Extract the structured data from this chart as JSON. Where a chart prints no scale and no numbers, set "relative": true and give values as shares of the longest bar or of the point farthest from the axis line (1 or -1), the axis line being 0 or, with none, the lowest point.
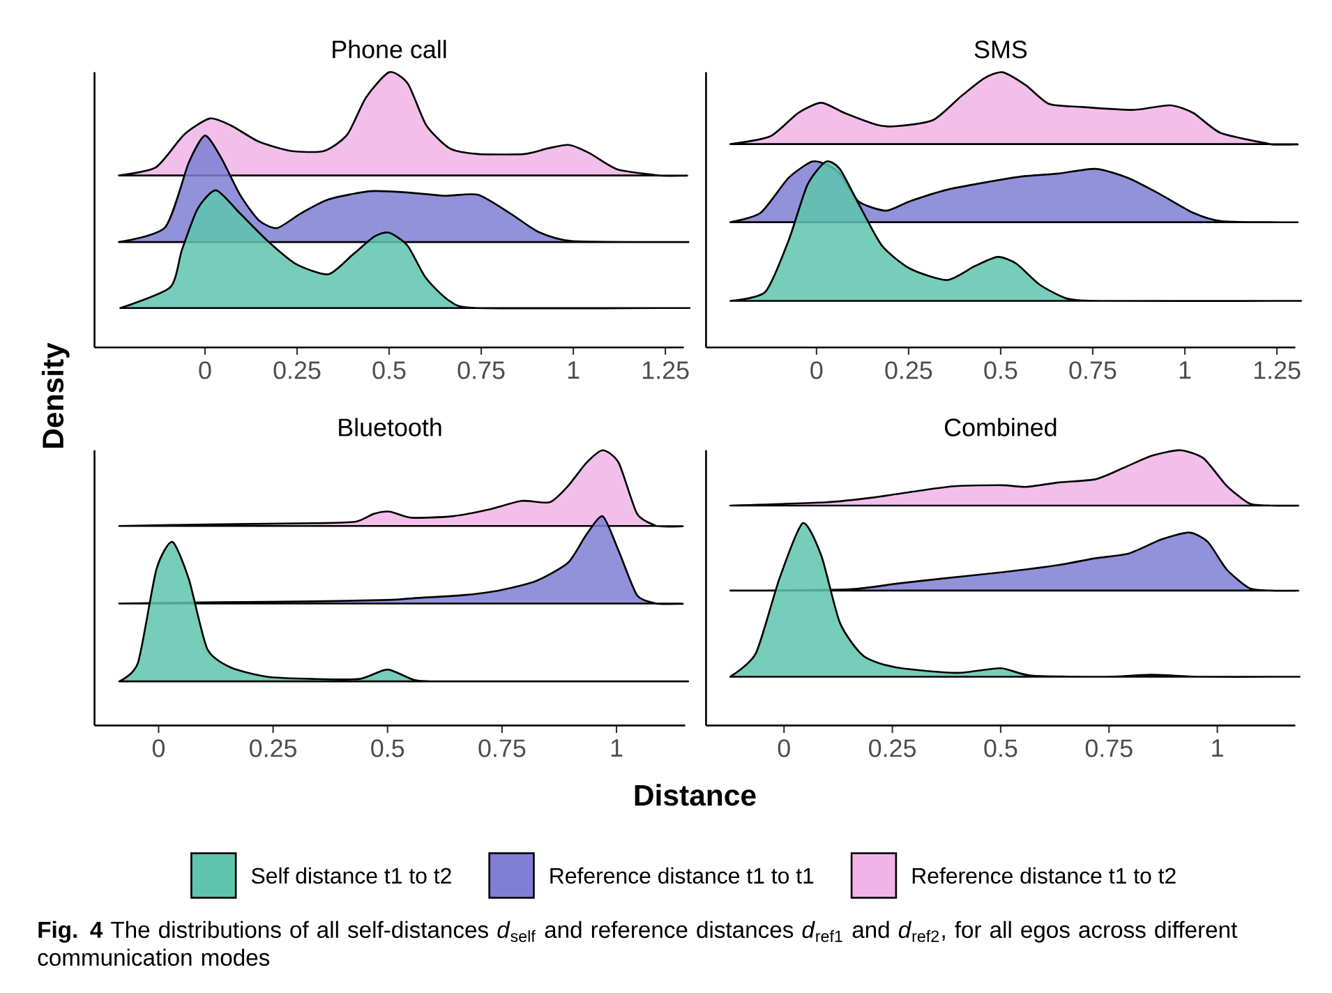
{
  "chart_data": [
    {
      "type": "area",
      "title": "Phone call",
      "ylabel": "Density",
      "relative": true,
      "xlim": [
        -0.3,
        1.3
      ],
      "xticks": [
        0,
        0.25,
        0.5,
        0.75,
        1,
        1.25
      ],
      "tick_labels": "x",
      "legend": "bottom",
      "series": [
        {
          "name": "Self distance t1 to t2",
          "color": "#5ec4ae",
          "x": [
            -0.23,
            -0.095,
            -0.063,
            -0.02,
            0.03,
            0.095,
            0.17,
            0.247,
            0.335,
            0.4,
            0.46,
            0.5,
            0.55,
            0.6,
            0.665,
            0.74,
            1.23
          ],
          "values": [
            0.143,
            0.218,
            0.353,
            0.504,
            0.571,
            0.487,
            0.387,
            0.303,
            0.266,
            0.336,
            0.403,
            0.417,
            0.37,
            0.252,
            0.168,
            0.143,
            0.143
          ]
        },
        {
          "name": "Reference distance t1 to t1",
          "color": "#7f7fd5",
          "x": [
            -0.234,
            -0.108,
            -0.044,
            0,
            0.044,
            0.095,
            0.146,
            0.196,
            0.26,
            0.335,
            0.449,
            0.551,
            0.652,
            0.741,
            0.829,
            0.905,
            0.994,
            1.234
          ],
          "values": [
            0.383,
            0.437,
            0.672,
            0.77,
            0.689,
            0.555,
            0.462,
            0.434,
            0.487,
            0.538,
            0.568,
            0.563,
            0.551,
            0.555,
            0.487,
            0.42,
            0.387,
            0.383
          ]
        },
        {
          "name": "Reference distance t1 to t2",
          "color": "#f0b4e8",
          "x": [
            -0.234,
            -0.133,
            -0.057,
            0.013,
            0.07,
            0.146,
            0.234,
            0.323,
            0.386,
            0.437,
            0.5,
            0.551,
            0.601,
            0.665,
            0.741,
            0.867,
            0.93,
            0.987,
            1.044,
            1.12,
            1.234
          ],
          "values": [
            0.625,
            0.655,
            0.773,
            0.832,
            0.807,
            0.748,
            0.714,
            0.714,
            0.773,
            0.908,
            1.0,
            0.958,
            0.807,
            0.723,
            0.703,
            0.703,
            0.723,
            0.736,
            0.706,
            0.647,
            0.625
          ]
        }
      ]
    },
    {
      "type": "area",
      "title": "SMS",
      "relative": true,
      "xlim": [
        -0.3,
        1.3
      ],
      "xticks": [
        0,
        0.25,
        0.5,
        0.75,
        1,
        1.25
      ],
      "tick_labels": "x",
      "series": [
        {
          "color": "#5ec4ae",
          "x": [
            -0.234,
            -0.139,
            -0.076,
            -0.025,
            0.025,
            0.063,
            0.114,
            0.177,
            0.253,
            0.354,
            0.429,
            0.492,
            0.543,
            0.606,
            0.682,
            0.783,
            1.231
          ],
          "values": [
            0.169,
            0.202,
            0.388,
            0.59,
            0.675,
            0.649,
            0.523,
            0.371,
            0.287,
            0.245,
            0.295,
            0.329,
            0.304,
            0.228,
            0.177,
            0.169,
            0.169
          ]
        },
        {
          "color": "#7f7fd5",
          "x": [
            -0.234,
            -0.152,
            -0.076,
            -0.013,
            0.025,
            0.063,
            0.114,
            0.189,
            0.253,
            0.354,
            0.455,
            0.556,
            0.657,
            0.758,
            0.846,
            0.934,
            1.023,
            1.098,
            1.231
          ],
          "values": [
            0.455,
            0.489,
            0.616,
            0.675,
            0.666,
            0.632,
            0.531,
            0.497,
            0.531,
            0.573,
            0.599,
            0.621,
            0.632,
            0.649,
            0.616,
            0.556,
            0.489,
            0.459,
            0.455
          ]
        },
        {
          "color": "#f0b4e8",
          "x": [
            -0.234,
            -0.126,
            -0.05,
            0.013,
            0.076,
            0.164,
            0.215,
            0.316,
            0.391,
            0.455,
            0.505,
            0.568,
            0.631,
            0.72,
            0.859,
            0.96,
            1.023,
            1.098,
            1.231
          ],
          "values": [
            0.739,
            0.767,
            0.852,
            0.889,
            0.852,
            0.809,
            0.804,
            0.826,
            0.911,
            0.978,
            1.0,
            0.953,
            0.885,
            0.874,
            0.863,
            0.88,
            0.852,
            0.779,
            0.739
          ]
        }
      ]
    },
    {
      "type": "area",
      "title": "Bluetooth",
      "xlabel": "Distance",
      "relative": true,
      "xlim": [
        -0.14,
        1.15
      ],
      "xticks": [
        0,
        0.25,
        0.5,
        0.75,
        1
      ],
      "tick_labels": "x",
      "series": [
        {
          "color": "#5ec4ae",
          "x": [
            -0.086,
            -0.045,
            -0.005,
            0.03,
            0.066,
            0.106,
            0.157,
            0.237,
            0.338,
            0.439,
            0.5,
            0.561,
            0.641,
            1.086
          ],
          "values": [
            0.16,
            0.228,
            0.566,
            0.667,
            0.532,
            0.279,
            0.211,
            0.177,
            0.169,
            0.169,
            0.203,
            0.164,
            0.16,
            0.16
          ]
        },
        {
          "color": "#7f7fd5",
          "x": [
            -0.086,
            0.136,
            0.338,
            0.5,
            0.561,
            0.662,
            0.742,
            0.823,
            0.894,
            0.934,
            0.97,
            1.005,
            1.045,
            1.086
          ],
          "values": [
            0.443,
            0.448,
            0.451,
            0.456,
            0.463,
            0.473,
            0.49,
            0.524,
            0.591,
            0.693,
            0.76,
            0.633,
            0.473,
            0.443
          ]
        },
        {
          "color": "#f0b4e8",
          "x": [
            -0.086,
            0.136,
            0.338,
            0.429,
            0.47,
            0.505,
            0.551,
            0.641,
            0.722,
            0.793,
            0.854,
            0.894,
            0.934,
            0.97,
            1.005,
            1.045,
            1.086
          ],
          "values": [
            0.725,
            0.731,
            0.735,
            0.74,
            0.769,
            0.777,
            0.755,
            0.76,
            0.785,
            0.816,
            0.811,
            0.87,
            0.954,
            1.0,
            0.954,
            0.769,
            0.725
          ]
        }
      ]
    },
    {
      "type": "area",
      "title": "Combined",
      "relative": true,
      "xlim": [
        -0.18,
        1.18
      ],
      "xticks": [
        0,
        0.25,
        0.5,
        0.75,
        1
      ],
      "tick_labels": "x",
      "annotations": [
        "**Fig. 4** The distributions of all self-distances *d*$_{self}$ and reference distances *d*$_{ref1}$ and *d*$_{ref2}$, for all egos across different communication modes"
      ],
      "series": [
        {
          "color": "#5ec4ae",
          "x": [
            -0.124,
            -0.065,
            -0.011,
            0.043,
            0.086,
            0.129,
            0.183,
            0.258,
            0.398,
            0.5,
            0.57,
            0.742,
            0.849,
            0.957,
            1.124
          ],
          "values": [
            0.177,
            0.262,
            0.532,
            0.735,
            0.617,
            0.373,
            0.253,
            0.211,
            0.191,
            0.208,
            0.181,
            0.177,
            0.184,
            0.177,
            0.177
          ]
        },
        {
          "color": "#7f7fd5",
          "x": [
            -0.124,
            0.151,
            0.258,
            0.366,
            0.505,
            0.634,
            0.72,
            0.796,
            0.871,
            0.935,
            0.978,
            1.022,
            1.075,
            1.124
          ],
          "values": [
            0.49,
            0.495,
            0.515,
            0.534,
            0.557,
            0.583,
            0.608,
            0.625,
            0.676,
            0.701,
            0.667,
            0.566,
            0.498,
            0.49
          ]
        },
        {
          "color": "#f0b4e8",
          "x": [
            -0.124,
            0.097,
            0.204,
            0.312,
            0.398,
            0.505,
            0.559,
            0.634,
            0.72,
            0.785,
            0.849,
            0.914,
            0.968,
            1.022,
            1.075,
            1.124
          ],
          "values": [
            0.799,
            0.811,
            0.828,
            0.853,
            0.87,
            0.873,
            0.867,
            0.883,
            0.895,
            0.937,
            0.98,
            1.0,
            0.971,
            0.87,
            0.806,
            0.799
          ]
        }
      ]
    }
  ]
}
